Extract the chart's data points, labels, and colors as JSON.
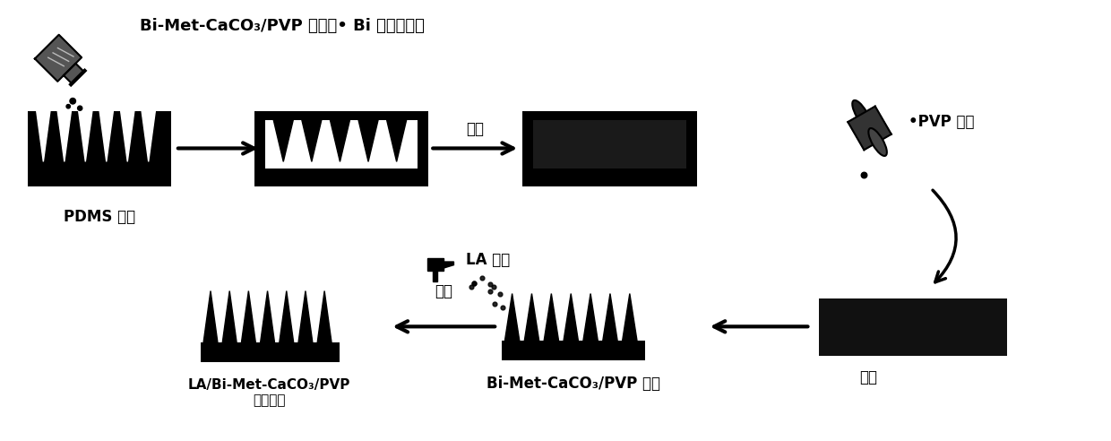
{
  "bg_color": "#ffffff",
  "text_color": "#000000",
  "fig_width": 12.4,
  "fig_height": 4.92,
  "title1": "Bi-Met-CaCO₃/PVP 溶液（• Bi 纳米粒子）",
  "label_pdms": "PDMS 阴模",
  "label_lixin": "离心",
  "label_ganzhao": "干燥",
  "label_LA": "LA 溶液",
  "label_penchang": "喷涂",
  "label_pvp": "•PVP 凝胶",
  "label_microneedle1": "Bi-Met-CaCO₃/PVP 微针",
  "label_microneedle2": "LA/Bi-Met-CaCO₃/PVP\n涂覆微针"
}
